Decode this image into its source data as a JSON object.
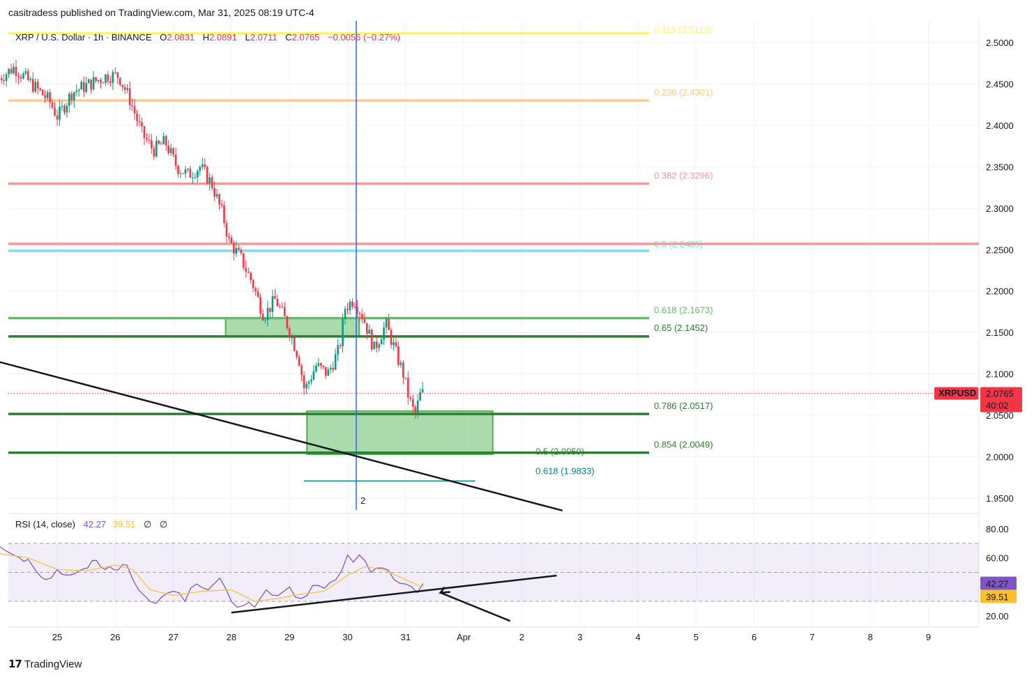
{
  "header": {
    "publisher": "casitradess published on TradingView.com, Mar 31, 2025 08:19 UTC-4"
  },
  "legend": {
    "symbol": "XRP / U.S. Dollar · 1h · BINANCE",
    "o_label": "O",
    "o_value": "2.0831",
    "h_label": "H",
    "h_value": "2.0891",
    "l_label": "L",
    "l_value": "2.0711",
    "c_label": "C",
    "c_value": "2.0765",
    "change": "−0.0056 (−0.27%)"
  },
  "rsi_legend": {
    "label": "RSI (14, close)",
    "value1": "42.27",
    "value2": "39.51",
    "extra1": "∅",
    "extra2": "∅"
  },
  "price_tag": {
    "symbol": "XRPUSD",
    "price": "2.0765",
    "countdown": "40:02",
    "color": "#f23645"
  },
  "rsi_tags": {
    "rsi": "42.27",
    "ma": "39.51"
  },
  "vertical_marker_label": "2",
  "footer": {
    "brand": "TradingView"
  },
  "colors": {
    "candle_up": "#089981",
    "candle_down": "#f23645",
    "fib_0118": "#fff176",
    "fib_0236": "#ffcc80",
    "fib_0382": "#ef9a9a",
    "fib_05": "#80deea",
    "fib_green": "#66bb6a",
    "fib_dark_green": "#2e7d32",
    "rsi_line": "#7e57c2",
    "rsi_ma": "#fbc02d",
    "blue_line": "#2962ff"
  },
  "chart_data": {
    "type": "candlestick",
    "symbol": "XRP / U.S. Dollar",
    "interval": "1h",
    "exchange": "BINANCE",
    "price_axis": {
      "ticks": [
        "2.5000",
        "2.4500",
        "2.4000",
        "2.3500",
        "2.3000",
        "2.2500",
        "2.2000",
        "2.1500",
        "2.1000",
        "2.0500",
        "2.0000",
        "1.9500"
      ],
      "range": [
        1.935,
        2.52
      ]
    },
    "time_axis": {
      "ticks": [
        "25",
        "26",
        "27",
        "28",
        "29",
        "30",
        "31",
        "Apr",
        "2",
        "3",
        "4",
        "5",
        "6",
        "7",
        "8",
        "9"
      ]
    },
    "last_price": 2.0765,
    "ohlc_path": [
      [
        24.0,
        2.455
      ],
      [
        24.3,
        2.47
      ],
      [
        24.6,
        2.45
      ],
      [
        24.9,
        2.43
      ],
      [
        25.05,
        2.41
      ],
      [
        25.3,
        2.44
      ],
      [
        25.6,
        2.45
      ],
      [
        25.9,
        2.46
      ],
      [
        26.1,
        2.46
      ],
      [
        26.3,
        2.43
      ],
      [
        26.5,
        2.39
      ],
      [
        26.7,
        2.37
      ],
      [
        26.9,
        2.38
      ],
      [
        27.1,
        2.35
      ],
      [
        27.3,
        2.34
      ],
      [
        27.5,
        2.35
      ],
      [
        27.7,
        2.33
      ],
      [
        27.9,
        2.29
      ],
      [
        28.0,
        2.26
      ],
      [
        28.2,
        2.24
      ],
      [
        28.4,
        2.21
      ],
      [
        28.6,
        2.17
      ],
      [
        28.8,
        2.19
      ],
      [
        29.0,
        2.16
      ],
      [
        29.2,
        2.12
      ],
      [
        29.3,
        2.08
      ],
      [
        29.5,
        2.11
      ],
      [
        29.7,
        2.1
      ],
      [
        29.9,
        2.13
      ],
      [
        30.0,
        2.18
      ],
      [
        30.15,
        2.19
      ],
      [
        30.3,
        2.17
      ],
      [
        30.5,
        2.13
      ],
      [
        30.7,
        2.16
      ],
      [
        30.9,
        2.12
      ],
      [
        31.0,
        2.1
      ],
      [
        31.1,
        2.07
      ],
      [
        31.2,
        2.05
      ],
      [
        31.3,
        2.0765
      ]
    ],
    "fibonacci_levels": [
      {
        "label": "0.118 (2.5113)",
        "price": 2.5113,
        "color": "#fff176",
        "line_price": 2.511
      },
      {
        "label": "0.236 (2.4301)",
        "price": 2.4301,
        "color": "#ffcc80",
        "line_price": 2.43
      },
      {
        "label": "0.382 (2.3296)",
        "price": 2.3296,
        "color": "#ef9a9a",
        "line_price": 2.3296
      },
      {
        "label": "0.5 (2.2485)",
        "price": 2.2485,
        "color": "#80deea",
        "line_price": 2.2485
      },
      {
        "label": "0.618 (2.1673)",
        "price": 2.1673,
        "color": "#66bb6a",
        "line_price": 2.1673
      },
      {
        "label": "0.65 (2.1452)",
        "price": 2.1452,
        "color": "#2e7d32",
        "line_price": 2.1452
      },
      {
        "label": "0.786 (2.0517)",
        "price": 2.0517,
        "color": "#2e7d32",
        "line_price": 2.0517
      },
      {
        "label": "0.854 (2.0049)",
        "price": 2.0049,
        "color": "#2e7d32",
        "line_price": 2.0049
      }
    ],
    "secondary_fib_levels": [
      {
        "label": "0.5 (2.0059)",
        "price": 2.0059,
        "color": "#388e3c"
      },
      {
        "label": "0.618 (1.9833)",
        "price": 1.9833,
        "color": "#00897b"
      }
    ],
    "horizontal_line_price": 2.257,
    "zones": [
      {
        "from_day": 27.9,
        "to_day": 30.2,
        "price_top": 2.167,
        "price_bottom": 2.145,
        "color": "#66bb6a"
      },
      {
        "from_day": 29.3,
        "to_day": 32.5,
        "price_top": 2.055,
        "price_bottom": 2.003,
        "color": "#66bb6a"
      }
    ],
    "vertical_line_day": 30.15,
    "trendline": {
      "from": [
        24.0,
        2.1145
      ],
      "to": [
        33.7,
        1.935
      ]
    },
    "rsi": {
      "name": "RSI (14, close)",
      "axis_ticks": [
        "80.00",
        "60.00",
        "20.00"
      ],
      "range": [
        15,
        85
      ],
      "band": [
        30,
        70
      ],
      "mid": 50,
      "last": 42.27,
      "ma_last": 39.51,
      "rsi_path": [
        [
          24.0,
          68
        ],
        [
          24.2,
          63
        ],
        [
          24.5,
          59
        ],
        [
          24.8,
          45
        ],
        [
          25.0,
          52
        ],
        [
          25.3,
          49
        ],
        [
          25.6,
          58
        ],
        [
          25.9,
          54
        ],
        [
          26.2,
          55
        ],
        [
          26.4,
          38
        ],
        [
          26.6,
          30
        ],
        [
          26.8,
          33
        ],
        [
          27.0,
          37
        ],
        [
          27.2,
          30
        ],
        [
          27.4,
          42
        ],
        [
          27.6,
          38
        ],
        [
          27.8,
          46
        ],
        [
          28.0,
          30
        ],
        [
          28.2,
          27
        ],
        [
          28.4,
          26
        ],
        [
          28.6,
          38
        ],
        [
          28.8,
          34
        ],
        [
          29.0,
          40
        ],
        [
          29.2,
          32
        ],
        [
          29.4,
          41
        ],
        [
          29.6,
          39
        ],
        [
          29.8,
          45
        ],
        [
          30.0,
          62
        ],
        [
          30.1,
          57
        ],
        [
          30.2,
          62
        ],
        [
          30.4,
          50
        ],
        [
          30.6,
          53
        ],
        [
          30.8,
          45
        ],
        [
          31.0,
          42
        ],
        [
          31.2,
          36
        ],
        [
          31.3,
          42.27
        ]
      ],
      "ma_path": [
        [
          24.0,
          63
        ],
        [
          24.5,
          60
        ],
        [
          25.0,
          52
        ],
        [
          25.5,
          51
        ],
        [
          26.0,
          55
        ],
        [
          26.3,
          52
        ],
        [
          26.6,
          38
        ],
        [
          27.0,
          34
        ],
        [
          27.5,
          37
        ],
        [
          28.0,
          38
        ],
        [
          28.4,
          30
        ],
        [
          28.8,
          32
        ],
        [
          29.2,
          35
        ],
        [
          29.6,
          37
        ],
        [
          30.0,
          48
        ],
        [
          30.3,
          54
        ],
        [
          30.6,
          52
        ],
        [
          31.0,
          45
        ],
        [
          31.3,
          39.51
        ]
      ],
      "trendline": {
        "from": [
          28.0,
          22.3
        ],
        "to": [
          33.6,
          47.8
        ]
      },
      "arrow": {
        "from": [
          32.8,
          16.5
        ],
        "to": [
          31.6,
          36.0
        ]
      }
    }
  }
}
